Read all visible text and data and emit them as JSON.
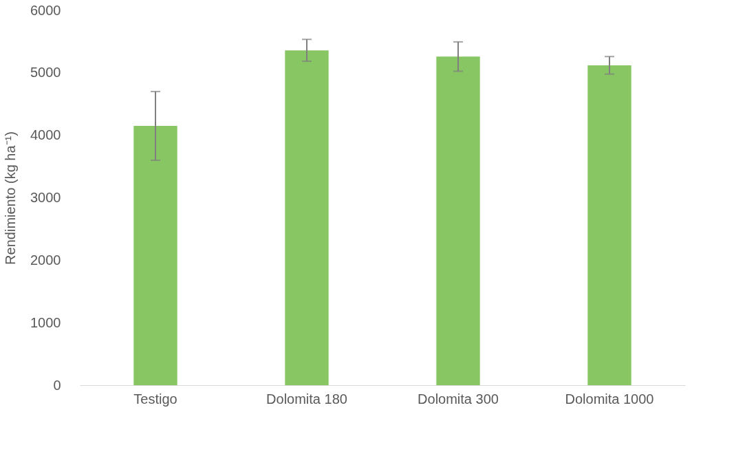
{
  "chart_data": {
    "type": "bar",
    "ylabel": "Rendimiento (kg ha⁻¹)",
    "categories": [
      "Testigo",
      "Dolomita 180",
      "Dolomita 300",
      "Dolomita 1000"
    ],
    "values": [
      4150,
      5360,
      5260,
      5120
    ],
    "errors": [
      550,
      175,
      235,
      140
    ],
    "color": "#87c663",
    "ylim": [
      0,
      6000
    ],
    "yticks": [
      0,
      1000,
      2000,
      3000,
      4000,
      5000,
      6000
    ],
    "grid": false
  }
}
